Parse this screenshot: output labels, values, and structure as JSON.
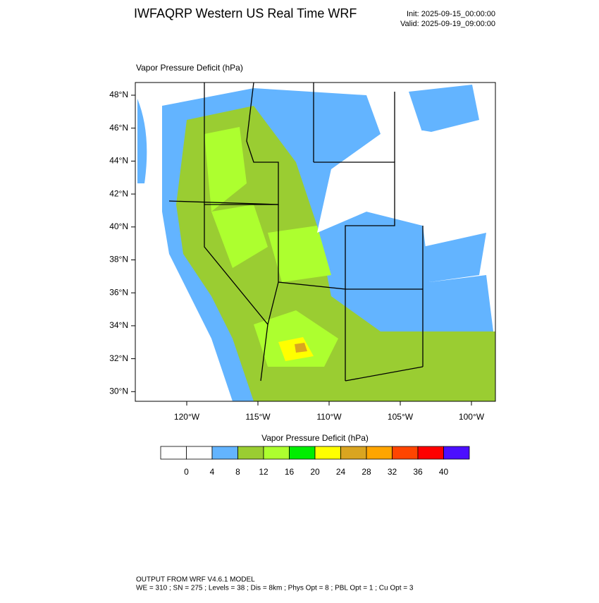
{
  "header": {
    "title": "IWFAQRP Western US Real Time WRF",
    "init": "Init: 2025-09-15_00:00:00",
    "valid": "Valid: 2025-09-19_09:00:00"
  },
  "map": {
    "title": "Vapor Pressure Deficit   (hPa)",
    "lat_labels": [
      "48°N",
      "46°N",
      "44°N",
      "42°N",
      "40°N",
      "38°N",
      "36°N",
      "34°N",
      "32°N",
      "30°N"
    ],
    "lon_labels": [
      "120°W",
      "115°W",
      "110°W",
      "105°W",
      "100°W"
    ]
  },
  "colorbar": {
    "title": "Vapor Pressure Deficit  (hPa)",
    "colors": [
      "#ffffff",
      "#ffffff",
      "#63b4ff",
      "#9acd32",
      "#adff2f",
      "#00ee00",
      "#ffff00",
      "#daa520",
      "#ffa500",
      "#ff4500",
      "#ff0000",
      "#4b0fff"
    ],
    "ticks": [
      0,
      4,
      8,
      12,
      16,
      20,
      24,
      28,
      32,
      36,
      40
    ]
  },
  "footer": {
    "line1": "OUTPUT FROM WRF V4.6.1 MODEL",
    "line2": "WE = 310 ; SN = 275 ; Levels = 38 ; Dis = 8km ; Phys Opt = 8 ; PBL Opt = 1 ; Cu Opt = 3"
  }
}
